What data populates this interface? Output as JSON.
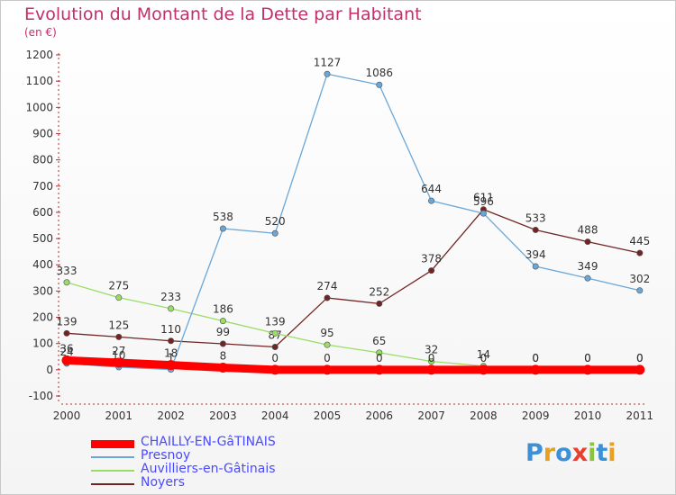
{
  "title": "Evolution du Montant de la Dette par Habitant",
  "subtitle": "(en €)",
  "logo": "Proxiti",
  "chart_data": {
    "type": "line",
    "title": "Evolution du Montant de la Dette par Habitant",
    "ylabel": "(en €)",
    "x": [
      "2000",
      "2001",
      "2002",
      "2003",
      "2004",
      "2005",
      "2006",
      "2007",
      "2008",
      "2009",
      "2010",
      "2011"
    ],
    "ylim": [
      -100,
      1200
    ],
    "yticks": [
      "-100",
      "0",
      "100",
      "200",
      "300",
      "400",
      "500",
      "600",
      "700",
      "800",
      "900",
      "1000",
      "1100",
      "1200"
    ],
    "grid": false,
    "legend_position": "bottom-left",
    "series": [
      {
        "name": "CHAILLY-EN-GâTINAIS",
        "color": "#ff0000",
        "values": [
          36,
          27,
          18,
          8,
          0,
          0,
          0,
          0,
          0,
          0,
          0,
          0
        ],
        "labels": [
          "36",
          "27",
          "18",
          "8",
          "0",
          "0",
          "0",
          "0",
          "0",
          "0",
          "0",
          "0"
        ]
      },
      {
        "name": "Presnoy",
        "color": "#6aa7d8",
        "values": [
          24,
          10,
          1,
          538,
          520,
          1127,
          1086,
          644,
          596,
          394,
          349,
          302
        ],
        "labels": [
          "24",
          "10",
          "1",
          "538",
          "520",
          "1127",
          "1086",
          "644",
          "596",
          "394",
          "349",
          "302"
        ]
      },
      {
        "name": "Auvilliers-en-Gâtinais",
        "color": "#99dd66",
        "values": [
          333,
          275,
          233,
          186,
          139,
          95,
          65,
          32,
          14,
          0,
          0,
          0
        ],
        "labels": [
          "333",
          "275",
          "233",
          "186",
          "139",
          "95",
          "65",
          "32",
          "14",
          "0",
          "0",
          "0"
        ]
      },
      {
        "name": "Noyers",
        "color": "#722424",
        "values": [
          139,
          125,
          110,
          99,
          87,
          274,
          252,
          378,
          611,
          533,
          488,
          445
        ],
        "labels": [
          "139",
          "125",
          "110",
          "99",
          "87",
          "274",
          "252",
          "378",
          "611",
          "533",
          "488",
          "445"
        ]
      }
    ]
  }
}
